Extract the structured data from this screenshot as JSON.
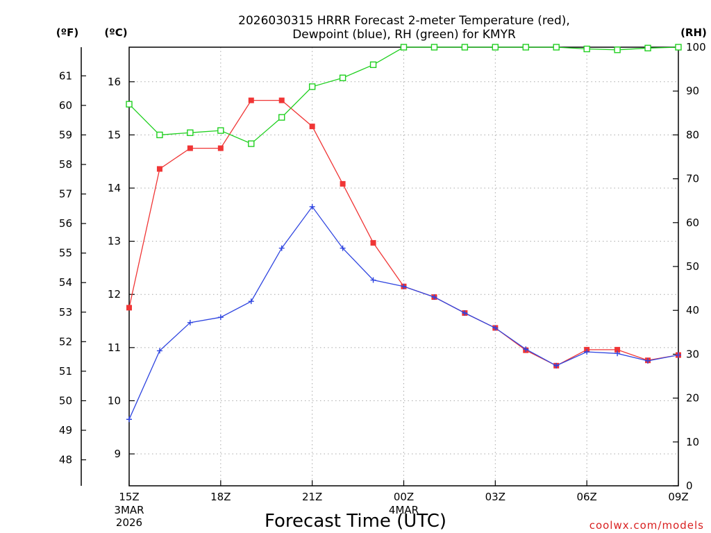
{
  "title": {
    "line1": "2026030315 HRRR Forecast 2-meter Temperature (red),",
    "line2": "Dewpoint (blue), RH (green) for KMYR"
  },
  "axis_units": {
    "fahrenheit": "(ºF)",
    "celsius": "(ºC)",
    "rh": "(RH)"
  },
  "xlabel": "Forecast Time (UTC)",
  "credit": "coolwx.com/models",
  "colors": {
    "temperature": "#f03535",
    "dewpoint": "#2f45e0",
    "rh": "#1fd01f",
    "grid": "#a8a8a8",
    "axis": "#000000"
  },
  "chart_data": {
    "type": "line",
    "x": [
      "15Z",
      "16Z",
      "17Z",
      "18Z",
      "19Z",
      "20Z",
      "21Z",
      "22Z",
      "23Z",
      "00Z",
      "01Z",
      "02Z",
      "03Z",
      "04Z",
      "05Z",
      "06Z",
      "07Z",
      "08Z",
      "09Z"
    ],
    "x_ticks": [
      {
        "index": 0,
        "label": "15Z",
        "sub1": "3MAR",
        "sub2": "2026"
      },
      {
        "index": 3,
        "label": "18Z"
      },
      {
        "index": 6,
        "label": "21Z"
      },
      {
        "index": 9,
        "label": "00Z",
        "sub1": "4MAR"
      },
      {
        "index": 12,
        "label": "03Z"
      },
      {
        "index": 15,
        "label": "06Z"
      },
      {
        "index": 18,
        "label": "09Z"
      }
    ],
    "celsius_ticks": [
      9,
      10,
      11,
      12,
      13,
      14,
      15,
      16
    ],
    "fahrenheit_ticks": [
      48,
      49,
      50,
      51,
      52,
      53,
      54,
      55,
      56,
      57,
      58,
      59,
      60,
      61
    ],
    "rh_ticks": [
      0,
      10,
      20,
      30,
      40,
      50,
      60,
      70,
      80,
      90,
      100
    ],
    "ylim_celsius": [
      8.4,
      16.65
    ],
    "ylim_rh": [
      0,
      100
    ],
    "grid": true,
    "series": [
      {
        "name": "Temperature",
        "axis": "celsius",
        "marker": "filled-square",
        "color": "#f03535",
        "values": [
          11.75,
          14.36,
          14.75,
          14.75,
          15.65,
          15.65,
          15.16,
          14.08,
          12.97,
          12.15,
          11.95,
          11.65,
          11.37,
          10.95,
          10.66,
          10.96,
          10.96,
          10.76,
          10.86
        ]
      },
      {
        "name": "Dewpoint",
        "axis": "celsius",
        "marker": "plus",
        "color": "#2f45e0",
        "values": [
          9.65,
          10.94,
          11.47,
          11.57,
          11.87,
          12.87,
          13.65,
          12.87,
          12.27,
          12.15,
          11.95,
          11.65,
          11.37,
          10.97,
          10.66,
          10.92,
          10.89,
          10.75,
          10.86
        ]
      },
      {
        "name": "RH",
        "axis": "rh",
        "marker": "open-square",
        "color": "#1fd01f",
        "values": [
          87,
          80,
          80.5,
          81,
          78,
          84,
          91,
          93,
          96,
          100,
          100,
          100,
          100,
          100,
          100,
          99.6,
          99.4,
          99.8,
          100
        ]
      }
    ]
  }
}
